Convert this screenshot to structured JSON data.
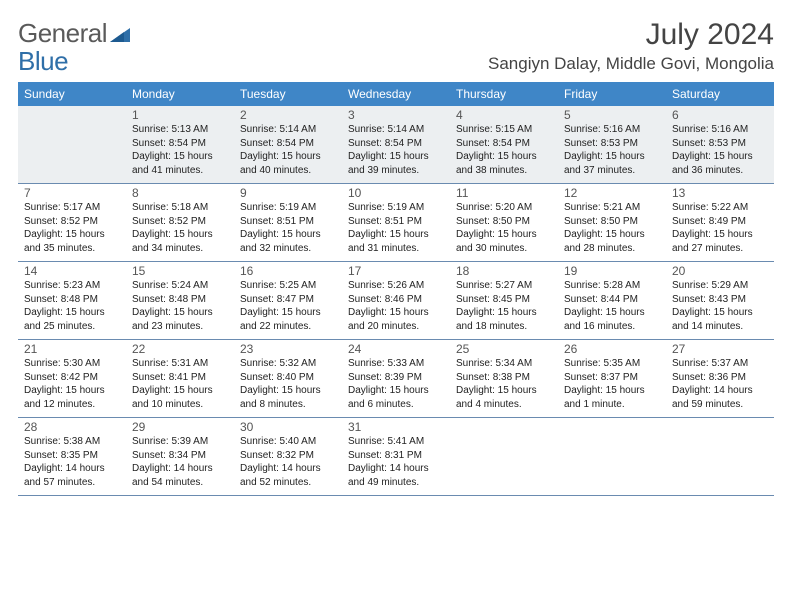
{
  "logo": {
    "word1": "General",
    "word2": "Blue"
  },
  "title": "July 2024",
  "location": "Sangiyn Dalay, Middle Govi, Mongolia",
  "colors": {
    "header_bg": "#3f86c7",
    "header_text": "#ffffff",
    "cell_border": "#6a8bb0",
    "first_row_bg": "#eceff1",
    "logo_gray": "#5a5a5a",
    "logo_blue": "#2f6fa8",
    "text": "#222222"
  },
  "weekdays": [
    "Sunday",
    "Monday",
    "Tuesday",
    "Wednesday",
    "Thursday",
    "Friday",
    "Saturday"
  ],
  "weeks": [
    [
      null,
      {
        "d": "1",
        "sr": "Sunrise: 5:13 AM",
        "ss": "Sunset: 8:54 PM",
        "dl1": "Daylight: 15 hours",
        "dl2": "and 41 minutes."
      },
      {
        "d": "2",
        "sr": "Sunrise: 5:14 AM",
        "ss": "Sunset: 8:54 PM",
        "dl1": "Daylight: 15 hours",
        "dl2": "and 40 minutes."
      },
      {
        "d": "3",
        "sr": "Sunrise: 5:14 AM",
        "ss": "Sunset: 8:54 PM",
        "dl1": "Daylight: 15 hours",
        "dl2": "and 39 minutes."
      },
      {
        "d": "4",
        "sr": "Sunrise: 5:15 AM",
        "ss": "Sunset: 8:54 PM",
        "dl1": "Daylight: 15 hours",
        "dl2": "and 38 minutes."
      },
      {
        "d": "5",
        "sr": "Sunrise: 5:16 AM",
        "ss": "Sunset: 8:53 PM",
        "dl1": "Daylight: 15 hours",
        "dl2": "and 37 minutes."
      },
      {
        "d": "6",
        "sr": "Sunrise: 5:16 AM",
        "ss": "Sunset: 8:53 PM",
        "dl1": "Daylight: 15 hours",
        "dl2": "and 36 minutes."
      }
    ],
    [
      {
        "d": "7",
        "sr": "Sunrise: 5:17 AM",
        "ss": "Sunset: 8:52 PM",
        "dl1": "Daylight: 15 hours",
        "dl2": "and 35 minutes."
      },
      {
        "d": "8",
        "sr": "Sunrise: 5:18 AM",
        "ss": "Sunset: 8:52 PM",
        "dl1": "Daylight: 15 hours",
        "dl2": "and 34 minutes."
      },
      {
        "d": "9",
        "sr": "Sunrise: 5:19 AM",
        "ss": "Sunset: 8:51 PM",
        "dl1": "Daylight: 15 hours",
        "dl2": "and 32 minutes."
      },
      {
        "d": "10",
        "sr": "Sunrise: 5:19 AM",
        "ss": "Sunset: 8:51 PM",
        "dl1": "Daylight: 15 hours",
        "dl2": "and 31 minutes."
      },
      {
        "d": "11",
        "sr": "Sunrise: 5:20 AM",
        "ss": "Sunset: 8:50 PM",
        "dl1": "Daylight: 15 hours",
        "dl2": "and 30 minutes."
      },
      {
        "d": "12",
        "sr": "Sunrise: 5:21 AM",
        "ss": "Sunset: 8:50 PM",
        "dl1": "Daylight: 15 hours",
        "dl2": "and 28 minutes."
      },
      {
        "d": "13",
        "sr": "Sunrise: 5:22 AM",
        "ss": "Sunset: 8:49 PM",
        "dl1": "Daylight: 15 hours",
        "dl2": "and 27 minutes."
      }
    ],
    [
      {
        "d": "14",
        "sr": "Sunrise: 5:23 AM",
        "ss": "Sunset: 8:48 PM",
        "dl1": "Daylight: 15 hours",
        "dl2": "and 25 minutes."
      },
      {
        "d": "15",
        "sr": "Sunrise: 5:24 AM",
        "ss": "Sunset: 8:48 PM",
        "dl1": "Daylight: 15 hours",
        "dl2": "and 23 minutes."
      },
      {
        "d": "16",
        "sr": "Sunrise: 5:25 AM",
        "ss": "Sunset: 8:47 PM",
        "dl1": "Daylight: 15 hours",
        "dl2": "and 22 minutes."
      },
      {
        "d": "17",
        "sr": "Sunrise: 5:26 AM",
        "ss": "Sunset: 8:46 PM",
        "dl1": "Daylight: 15 hours",
        "dl2": "and 20 minutes."
      },
      {
        "d": "18",
        "sr": "Sunrise: 5:27 AM",
        "ss": "Sunset: 8:45 PM",
        "dl1": "Daylight: 15 hours",
        "dl2": "and 18 minutes."
      },
      {
        "d": "19",
        "sr": "Sunrise: 5:28 AM",
        "ss": "Sunset: 8:44 PM",
        "dl1": "Daylight: 15 hours",
        "dl2": "and 16 minutes."
      },
      {
        "d": "20",
        "sr": "Sunrise: 5:29 AM",
        "ss": "Sunset: 8:43 PM",
        "dl1": "Daylight: 15 hours",
        "dl2": "and 14 minutes."
      }
    ],
    [
      {
        "d": "21",
        "sr": "Sunrise: 5:30 AM",
        "ss": "Sunset: 8:42 PM",
        "dl1": "Daylight: 15 hours",
        "dl2": "and 12 minutes."
      },
      {
        "d": "22",
        "sr": "Sunrise: 5:31 AM",
        "ss": "Sunset: 8:41 PM",
        "dl1": "Daylight: 15 hours",
        "dl2": "and 10 minutes."
      },
      {
        "d": "23",
        "sr": "Sunrise: 5:32 AM",
        "ss": "Sunset: 8:40 PM",
        "dl1": "Daylight: 15 hours",
        "dl2": "and 8 minutes."
      },
      {
        "d": "24",
        "sr": "Sunrise: 5:33 AM",
        "ss": "Sunset: 8:39 PM",
        "dl1": "Daylight: 15 hours",
        "dl2": "and 6 minutes."
      },
      {
        "d": "25",
        "sr": "Sunrise: 5:34 AM",
        "ss": "Sunset: 8:38 PM",
        "dl1": "Daylight: 15 hours",
        "dl2": "and 4 minutes."
      },
      {
        "d": "26",
        "sr": "Sunrise: 5:35 AM",
        "ss": "Sunset: 8:37 PM",
        "dl1": "Daylight: 15 hours",
        "dl2": "and 1 minute."
      },
      {
        "d": "27",
        "sr": "Sunrise: 5:37 AM",
        "ss": "Sunset: 8:36 PM",
        "dl1": "Daylight: 14 hours",
        "dl2": "and 59 minutes."
      }
    ],
    [
      {
        "d": "28",
        "sr": "Sunrise: 5:38 AM",
        "ss": "Sunset: 8:35 PM",
        "dl1": "Daylight: 14 hours",
        "dl2": "and 57 minutes."
      },
      {
        "d": "29",
        "sr": "Sunrise: 5:39 AM",
        "ss": "Sunset: 8:34 PM",
        "dl1": "Daylight: 14 hours",
        "dl2": "and 54 minutes."
      },
      {
        "d": "30",
        "sr": "Sunrise: 5:40 AM",
        "ss": "Sunset: 8:32 PM",
        "dl1": "Daylight: 14 hours",
        "dl2": "and 52 minutes."
      },
      {
        "d": "31",
        "sr": "Sunrise: 5:41 AM",
        "ss": "Sunset: 8:31 PM",
        "dl1": "Daylight: 14 hours",
        "dl2": "and 49 minutes."
      },
      null,
      null,
      null
    ]
  ]
}
